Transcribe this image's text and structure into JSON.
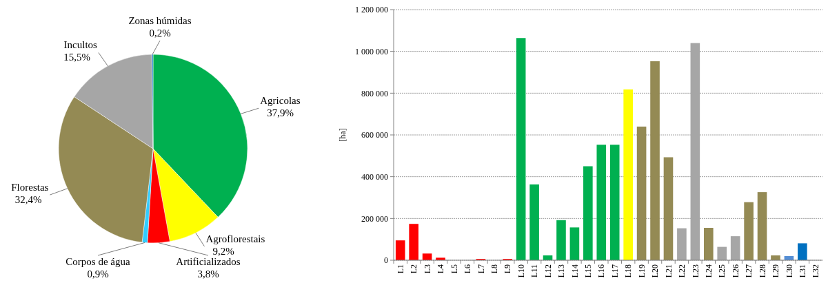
{
  "chart_data": [
    {
      "type": "pie",
      "categories": [
        "Agricolas",
        "Agroflorestais",
        "Artificializados",
        "Corpos de água",
        "Florestas",
        "Incultos",
        "Zonas húmidas"
      ],
      "values": [
        37.9,
        9.2,
        3.8,
        0.9,
        32.4,
        15.5,
        0.2
      ],
      "colors": [
        "#00b050",
        "#ffff00",
        "#ff0000",
        "#33ccff",
        "#948a54",
        "#a6a6a6",
        "#0070c0"
      ],
      "value_labels": [
        "37,9%",
        "9,2%",
        "3,8%",
        "0,9%",
        "32,4%",
        "15,5%",
        "0,2%"
      ]
    },
    {
      "type": "bar",
      "ylabel": "[ha]",
      "grid": "y",
      "categories": [
        "L1",
        "L2",
        "L3",
        "L4",
        "L5",
        "L6",
        "L7",
        "L8",
        "L9",
        "L10",
        "L11",
        "L12",
        "L13",
        "L14",
        "L15",
        "L16",
        "L17",
        "L18",
        "L19",
        "L20",
        "L21",
        "L22",
        "L23",
        "L24",
        "L25",
        "L26",
        "L27",
        "L28",
        "L29",
        "L30",
        "L31",
        "L32"
      ],
      "values": [
        95000,
        174000,
        32000,
        12000,
        0,
        0,
        6000,
        0,
        6000,
        1064000,
        363000,
        23000,
        192000,
        157000,
        450000,
        553000,
        553000,
        818000,
        640000,
        953000,
        493000,
        153000,
        1040000,
        155000,
        64000,
        115000,
        278000,
        326000,
        23000,
        20000,
        81000,
        0
      ],
      "colors": [
        "#ff0000",
        "#ff0000",
        "#ff0000",
        "#ff0000",
        "#ff0000",
        "#ff0000",
        "#ff0000",
        "#ff0000",
        "#ff0000",
        "#00b050",
        "#00b050",
        "#00b050",
        "#00b050",
        "#00b050",
        "#00b050",
        "#00b050",
        "#00b050",
        "#ffff00",
        "#948a54",
        "#948a54",
        "#948a54",
        "#a6a6a6",
        "#a6a6a6",
        "#948a54",
        "#a6a6a6",
        "#a6a6a6",
        "#948a54",
        "#948a54",
        "#948a54",
        "#558ed5",
        "#0070c0",
        "#0070c0"
      ],
      "ylim": [
        0,
        1200000
      ],
      "yticks": [
        0,
        {
          "value": 200000,
          "label": "200 000"
        },
        {
          "value": 400000,
          "label": "400 000"
        },
        {
          "value": 600000,
          "label": "600 000"
        },
        {
          "value": 800000,
          "label": "800 000"
        },
        {
          "value": 1000000,
          "label": "1 000 000"
        },
        {
          "value": 1200000,
          "label": "1 200 000"
        }
      ]
    }
  ]
}
